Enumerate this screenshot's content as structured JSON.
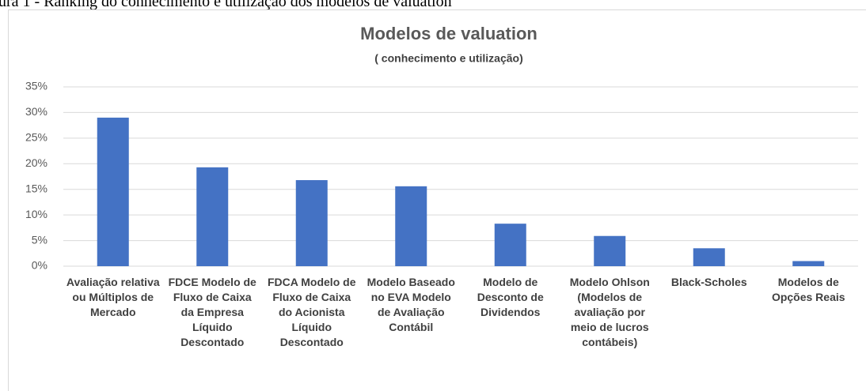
{
  "caption": "ura 1 - Ranking do conhecimento e utilização dos modelos de valuation",
  "chart_data": {
    "type": "bar",
    "title": "Modelos de valuation",
    "subtitle": "( conhecimento e utilização)",
    "categories": [
      "Avaliação relativa ou Múltiplos de Mercado",
      "FDCE Modelo de Fluxo de Caixa da Empresa Líquido Descontado",
      "FDCA Modelo de Fluxo de Caixa do Acionista Líquido Descontado",
      "Modelo Baseado no EVA Modelo de Avaliação Contábil",
      "Modelo de Desconto de Dividendos",
      "Modelo Ohlson (Modelos de avaliação por meio de lucros contábeis)",
      "Black-Scholes",
      "Modelos de Opções Reais"
    ],
    "values": [
      29,
      19.3,
      16.8,
      15.6,
      8.3,
      5.9,
      3.5,
      1
    ],
    "color": "#4472c4",
    "ylim": [
      0,
      35
    ],
    "yticks": [
      {
        "value": 0,
        "label": "0%"
      },
      {
        "value": 5,
        "label": "5%"
      },
      {
        "value": 10,
        "label": "10%"
      },
      {
        "value": 15,
        "label": "15%"
      },
      {
        "value": 20,
        "label": "20%"
      },
      {
        "value": 25,
        "label": "25%"
      },
      {
        "value": 30,
        "label": "30%"
      },
      {
        "value": 35,
        "label": "35%"
      }
    ],
    "grid": true
  }
}
